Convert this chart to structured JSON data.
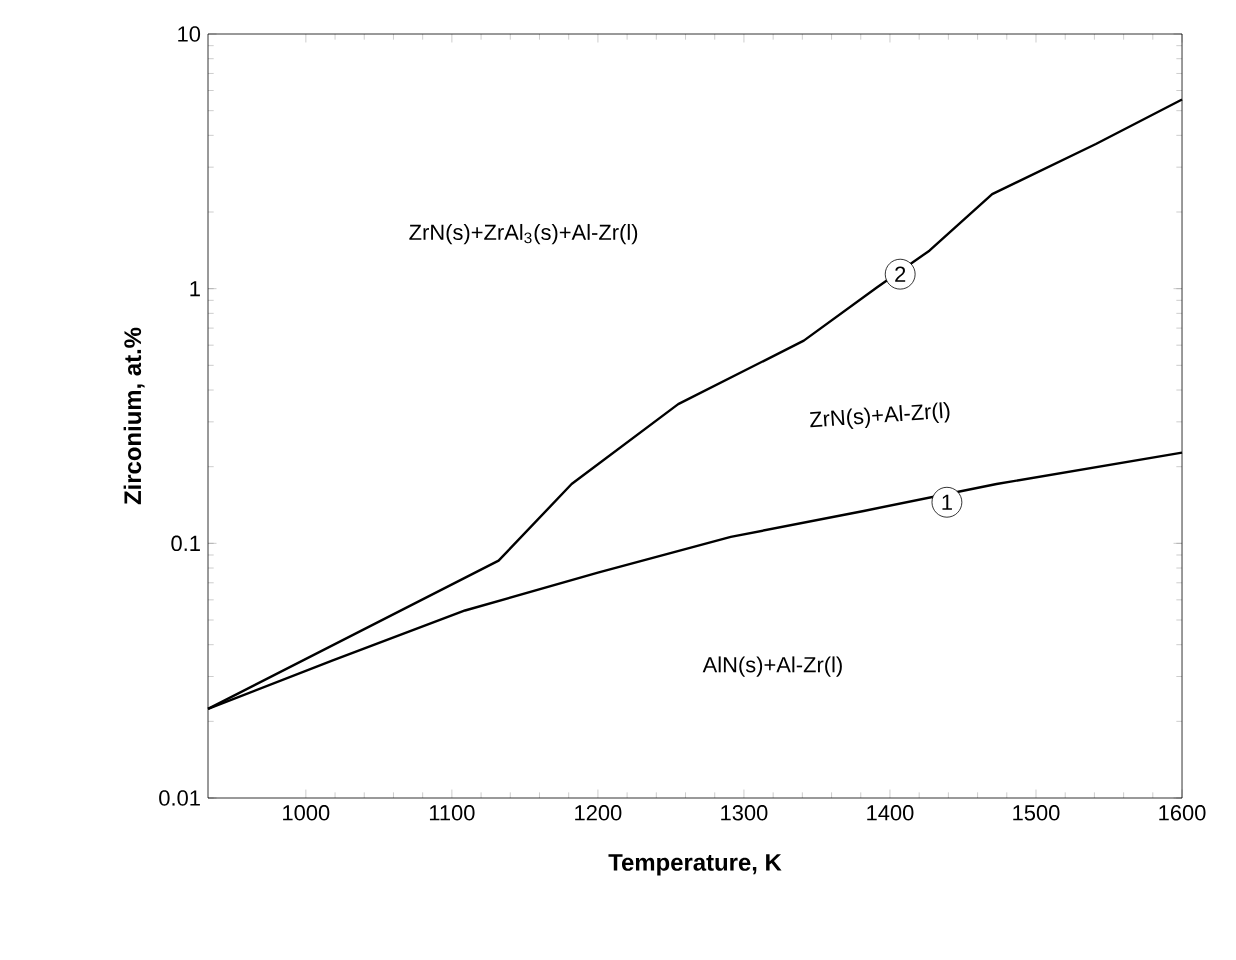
{
  "chart_data": {
    "type": "line",
    "xlabel": "Temperature, K",
    "ylabel": "Zirconium, at.%",
    "log": "y",
    "xlim": [
      933,
      1600
    ],
    "xticks": [
      1000,
      1100,
      1200,
      1300,
      1400,
      1500,
      1600
    ],
    "ylim": [
      0.01,
      10
    ],
    "yticks": [
      0.01,
      0.1,
      1,
      10
    ],
    "marker": "none",
    "line_style": "solid",
    "series": [
      {
        "color": "#000000",
        "x": [
          933,
          1018,
          1109,
          1200,
          1291,
          1382,
          1473,
          1600
        ],
        "values": [
          0.0224,
          0.0346,
          0.0545,
          0.0767,
          0.106,
          0.134,
          0.171,
          0.227
        ]
      },
      {
        "color": "#000000",
        "x": [
          933,
          1132,
          1182,
          1255,
          1341,
          1391,
          1427,
          1470,
          1541,
          1600
        ],
        "values": [
          0.0224,
          0.0855,
          0.171,
          0.352,
          0.625,
          1.01,
          1.41,
          2.35,
          3.7,
          5.53
        ]
      }
    ],
    "annotations": [
      "ZrN(s)+ZrAl$_{3}$(s)+Al-Zr(l)",
      "ZrN(s)+Al-Zr(l)",
      "AlN(s)+Al-Zr(l)",
      {
        "text": "1",
        "x": 1439,
        "y": 0.145
      },
      {
        "text": "2",
        "x": 1407,
        "y": 1.14
      }
    ]
  }
}
